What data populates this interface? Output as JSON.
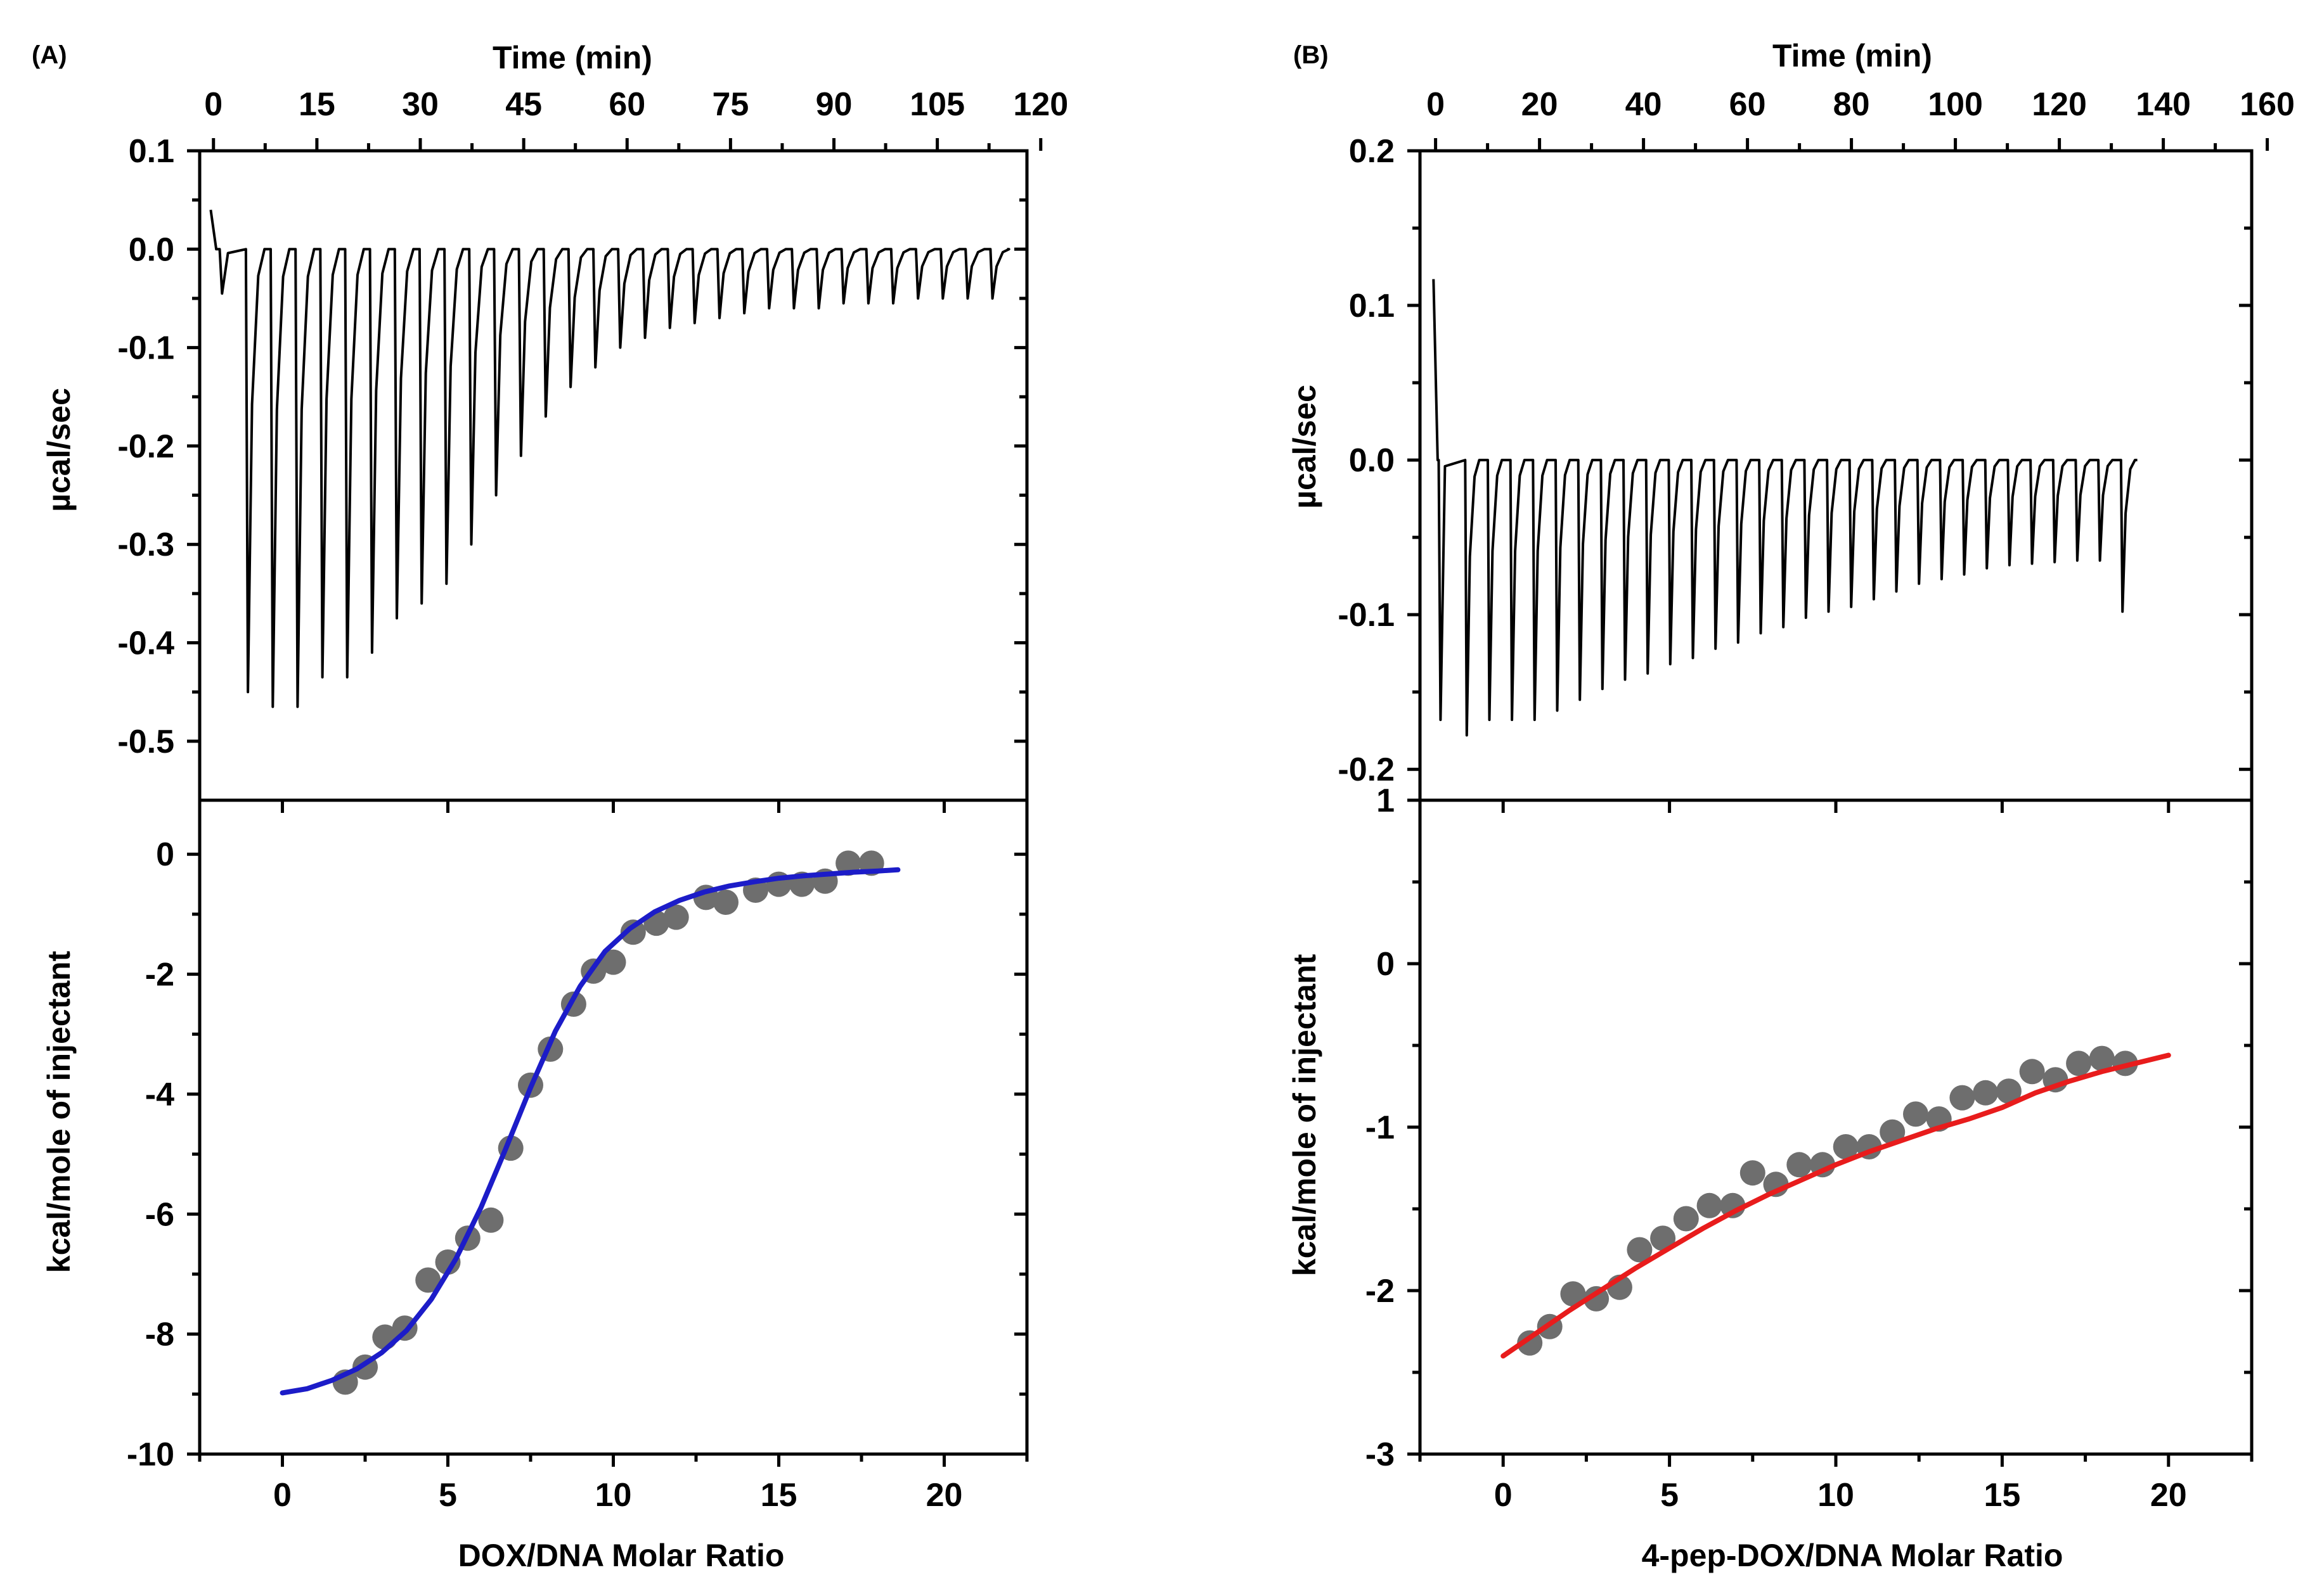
{
  "chart_data": [
    {
      "panel_label": "(A)",
      "type": "line",
      "top": {
        "x_label": "Time (min)",
        "y_label": "µcal/sec",
        "xlim": [
          -2,
          118
        ],
        "ylim": [
          -0.56,
          0.1
        ],
        "x_ticks": [
          "0",
          "15",
          "30",
          "45",
          "60",
          "75",
          "90",
          "105",
          "120"
        ],
        "x_tick_values": [
          0,
          15,
          30,
          45,
          60,
          75,
          90,
          105,
          120
        ],
        "y_ticks": [
          "0.1",
          "0.0",
          "-0.1",
          "-0.2",
          "-0.3",
          "-0.4",
          "-0.5"
        ],
        "y_tick_values": [
          0.1,
          0.0,
          -0.1,
          -0.2,
          -0.3,
          -0.4,
          -0.5
        ],
        "initial_spike": 0.04,
        "injection_start_min": 5,
        "injection_interval_min": 3.6,
        "injection_peaks": [
          -0.045,
          -0.45,
          -0.465,
          -0.465,
          -0.435,
          -0.435,
          -0.41,
          -0.375,
          -0.36,
          -0.34,
          -0.3,
          -0.25,
          -0.21,
          -0.17,
          -0.14,
          -0.12,
          -0.1,
          -0.09,
          -0.08,
          -0.075,
          -0.07,
          -0.065,
          -0.06,
          -0.06,
          -0.06,
          -0.055,
          -0.055,
          -0.055,
          -0.05,
          -0.05,
          -0.05,
          -0.05
        ]
      },
      "bottom": {
        "x_label": "DOX/DNA Molar Ratio",
        "y_label": "kcal/mole of injectant",
        "xlim": [
          -2.5,
          22.5
        ],
        "ylim": [
          -10,
          0.9
        ],
        "x_ticks": [
          "0",
          "5",
          "10",
          "15",
          "20"
        ],
        "x_tick_values": [
          0,
          5,
          10,
          15,
          20
        ],
        "y_ticks": [
          "0",
          "-2",
          "-4",
          "-6",
          "-8",
          "-10"
        ],
        "y_tick_values": [
          0,
          -2,
          -4,
          -6,
          -8,
          -10
        ],
        "fit_color": "#1c1cc8",
        "points": [
          [
            1.9,
            -8.8
          ],
          [
            2.5,
            -8.55
          ],
          [
            3.1,
            -8.05
          ],
          [
            3.7,
            -7.9
          ],
          [
            4.4,
            -7.1
          ],
          [
            5.0,
            -6.8
          ],
          [
            5.6,
            -6.4
          ],
          [
            6.3,
            -6.1
          ],
          [
            6.9,
            -4.9
          ],
          [
            7.5,
            -3.85
          ],
          [
            8.1,
            -3.25
          ],
          [
            8.8,
            -2.5
          ],
          [
            9.4,
            -1.95
          ],
          [
            10.0,
            -1.8
          ],
          [
            10.6,
            -1.3
          ],
          [
            11.3,
            -1.15
          ],
          [
            11.9,
            -1.05
          ],
          [
            12.8,
            -0.72
          ],
          [
            13.4,
            -0.8
          ],
          [
            14.3,
            -0.6
          ],
          [
            15.0,
            -0.5
          ],
          [
            15.7,
            -0.5
          ],
          [
            16.4,
            -0.45
          ],
          [
            17.1,
            -0.15
          ],
          [
            17.8,
            -0.15
          ]
        ],
        "fit_x": [
          0.0,
          0.75,
          1.5,
          2.25,
          3.0,
          3.75,
          4.5,
          5.25,
          6.0,
          6.75,
          7.5,
          8.25,
          9.0,
          9.75,
          10.5,
          11.25,
          12.0,
          12.75,
          13.5,
          14.25,
          15.0,
          15.75,
          16.5,
          17.25,
          18.0,
          18.6
        ],
        "fit_y": [
          -8.98,
          -8.91,
          -8.77,
          -8.58,
          -8.31,
          -7.94,
          -7.42,
          -6.74,
          -5.89,
          -4.91,
          -3.89,
          -2.95,
          -2.2,
          -1.62,
          -1.24,
          -0.96,
          -0.77,
          -0.63,
          -0.53,
          -0.46,
          -0.4,
          -0.36,
          -0.33,
          -0.3,
          -0.28,
          -0.26
        ]
      }
    },
    {
      "panel_label": "(B)",
      "type": "line",
      "top": {
        "x_label": "Time (min)",
        "y_label": "µcal/sec",
        "xlim": [
          -3,
          157
        ],
        "ylim": [
          -0.22,
          0.2
        ],
        "x_ticks": [
          "0",
          "20",
          "40",
          "60",
          "80",
          "100",
          "120",
          "140",
          "160"
        ],
        "x_tick_values": [
          0,
          20,
          40,
          60,
          80,
          100,
          120,
          140,
          160
        ],
        "y_ticks": [
          "0.2",
          "0.1",
          "0.0",
          "-0.1",
          "-0.2"
        ],
        "y_tick_values": [
          0.2,
          0.1,
          0.0,
          -0.1,
          -0.2
        ],
        "initial_spike": 0.117,
        "injection_start_min": 6,
        "injection_interval_min": 4.35,
        "injection_peaks": [
          -0.168,
          -0.178,
          -0.168,
          -0.168,
          -0.168,
          -0.162,
          -0.155,
          -0.148,
          -0.142,
          -0.138,
          -0.132,
          -0.128,
          -0.122,
          -0.118,
          -0.112,
          -0.108,
          -0.102,
          -0.098,
          -0.095,
          -0.09,
          -0.085,
          -0.08,
          -0.077,
          -0.074,
          -0.07,
          -0.068,
          -0.067,
          -0.066,
          -0.065,
          -0.065,
          -0.098
        ]
      },
      "bottom": {
        "x_label": "4-pep-DOX/DNA Molar Ratio",
        "y_label": "kcal/mole of injectant",
        "xlim": [
          -2.5,
          22.5
        ],
        "ylim": [
          -3,
          1
        ],
        "x_ticks": [
          "0",
          "5",
          "10",
          "15",
          "20"
        ],
        "x_tick_values": [
          0,
          5,
          10,
          15,
          20
        ],
        "y_ticks": [
          "1",
          "0",
          "-1",
          "-2",
          "-3"
        ],
        "y_tick_values": [
          1,
          0,
          -1,
          -2,
          -3
        ],
        "fit_color": "#e81c1c",
        "points": [
          [
            0.8,
            -2.32
          ],
          [
            1.4,
            -2.22
          ],
          [
            2.1,
            -2.02
          ],
          [
            2.8,
            -2.05
          ],
          [
            3.5,
            -1.98
          ],
          [
            4.1,
            -1.75
          ],
          [
            4.8,
            -1.68
          ],
          [
            5.5,
            -1.56
          ],
          [
            6.2,
            -1.48
          ],
          [
            6.9,
            -1.48
          ],
          [
            7.5,
            -1.28
          ],
          [
            8.2,
            -1.35
          ],
          [
            8.9,
            -1.23
          ],
          [
            9.6,
            -1.23
          ],
          [
            10.3,
            -1.12
          ],
          [
            11.0,
            -1.12
          ],
          [
            11.7,
            -1.03
          ],
          [
            12.4,
            -0.92
          ],
          [
            13.1,
            -0.95
          ],
          [
            13.8,
            -0.82
          ],
          [
            14.5,
            -0.79
          ],
          [
            15.2,
            -0.78
          ],
          [
            15.9,
            -0.66
          ],
          [
            16.6,
            -0.71
          ],
          [
            17.3,
            -0.61
          ],
          [
            18.0,
            -0.58
          ],
          [
            18.7,
            -0.61
          ]
        ],
        "fit_x": [
          0.0,
          1.0,
          2.0,
          3.0,
          4.0,
          5.0,
          6.0,
          7.0,
          8.0,
          9.0,
          10.0,
          11.0,
          12.0,
          13.0,
          14.0,
          15.0,
          16.0,
          17.0,
          18.0,
          19.0,
          20.0
        ],
        "fit_y": [
          -2.4,
          -2.26,
          -2.12,
          -1.99,
          -1.86,
          -1.74,
          -1.62,
          -1.51,
          -1.41,
          -1.32,
          -1.23,
          -1.15,
          -1.08,
          -1.01,
          -0.95,
          -0.88,
          -0.79,
          -0.72,
          -0.66,
          -0.61,
          -0.56
        ]
      }
    }
  ]
}
